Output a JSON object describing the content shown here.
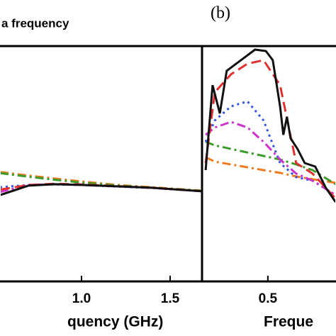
{
  "chart_data": [
    {
      "type": "line",
      "title": "a frequency",
      "xlabel": "quency (GHz)",
      "xlim": [
        0.54,
        1.68
      ],
      "ylim": [
        0,
        1
      ],
      "xticks": [
        {
          "value": 1,
          "label": "1.0"
        },
        1.5
      ],
      "x": [
        0.54,
        0.7,
        0.85,
        1.0,
        1.2,
        1.4,
        1.68
      ],
      "series": [
        {
          "color": "#f07b1e",
          "style": "dashdot",
          "values": [
            0.465,
            0.45,
            0.437,
            0.425,
            0.41,
            0.4,
            0.386
          ]
        },
        {
          "color": "#3a9a2a",
          "style": "dashdot",
          "values": [
            0.46,
            0.445,
            0.432,
            0.42,
            0.408,
            0.398,
            0.385
          ]
        },
        {
          "color": "#3355dd",
          "style": "dotted",
          "values": [
            0.4,
            0.41,
            0.412,
            0.41,
            0.403,
            0.397,
            0.383
          ]
        },
        {
          "color": "#cc33cc",
          "style": "dashdot",
          "values": [
            0.38,
            0.41,
            0.413,
            0.41,
            0.404,
            0.397,
            0.383
          ]
        },
        {
          "color": "#e03030",
          "style": "dashed",
          "values": [
            0.39,
            0.41,
            0.415,
            0.412,
            0.405,
            0.398,
            0.383
          ]
        },
        {
          "color": "#111111",
          "style": "solid",
          "values": [
            0.367,
            0.407,
            0.413,
            0.41,
            0.404,
            0.398,
            0.383
          ]
        }
      ]
    },
    {
      "type": "line",
      "title": "(b)",
      "xlabel": "Freque",
      "xlim": [
        0.3,
        0.707
      ],
      "ylim": [
        0,
        1
      ],
      "xticks": [
        0.5
      ],
      "x": [
        0.311,
        0.339,
        0.388,
        0.438,
        0.487,
        0.537,
        0.586,
        0.636,
        0.706
      ],
      "series": [
        {
          "color": "#f07b1e",
          "style": "dashdot",
          "values": [
            0.527,
            0.509,
            0.497,
            0.485,
            0.473,
            0.461,
            0.446,
            0.434,
            0.419
          ]
        },
        {
          "color": "#3a9a2a",
          "style": "dashdot",
          "values": [
            0.593,
            0.578,
            0.563,
            0.548,
            0.533,
            0.518,
            0.497,
            0.473,
            0.413
          ]
        },
        {
          "color": "#3355dd",
          "style": "dotted",
          "values": [
            0.593,
            0.684,
            0.744,
            0.765,
            0.684,
            0.503,
            0.443,
            0.428,
            0.367
          ]
        },
        {
          "color": "#cc33cc",
          "style": "dashdot",
          "values": [
            0.623,
            0.654,
            0.678,
            0.654,
            0.593,
            0.518,
            0.458,
            0.428,
            0.367
          ]
        },
        {
          "color": "#e03030",
          "style": "dashed",
          "values": [
            0.503,
            0.804,
            0.88,
            0.925,
            0.94,
            0.834,
            0.503,
            0.458,
            0.352
          ]
        },
        {
          "color": "#111111",
          "style": "solid",
          "x": [
            0.311,
            0.332,
            0.354,
            0.375,
            0.418,
            0.461,
            0.494,
            0.515,
            0.537,
            0.547,
            0.558,
            0.569,
            0.59,
            0.612,
            0.644,
            0.676,
            0.706
          ],
          "values": [
            0.473,
            0.834,
            0.714,
            0.895,
            0.94,
            0.985,
            0.979,
            0.94,
            0.744,
            0.623,
            0.699,
            0.608,
            0.563,
            0.503,
            0.488,
            0.398,
            0.337
          ]
        }
      ]
    }
  ]
}
